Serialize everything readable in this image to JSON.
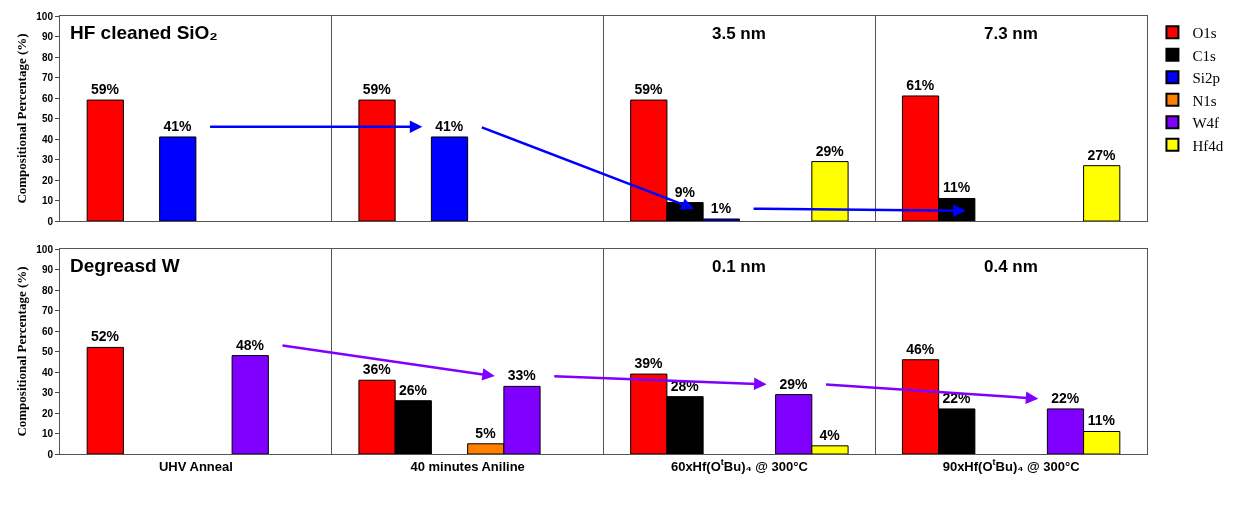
{
  "chart_data": [
    {
      "type": "bar",
      "annotations": [
        "HF cleaned SiO₂",
        "3.5 nm",
        "7.3 nm"
      ],
      "ylabel": "Compositional Percentage (%)",
      "categories": [
        "UHV Anneal",
        "40 minutes Aniline",
        "60xHf(O$^{t}$Bu)₄ @ 300°C",
        "90xHf(O$^{t}$Bu)₄ @ 300°C"
      ],
      "series": [
        {
          "name": "O1s",
          "color": "#ff0000",
          "values": [
            59,
            59,
            59,
            61
          ],
          "value_labels": [
            "59%",
            "59%",
            "59%",
            "61%"
          ]
        },
        {
          "name": "C1s",
          "color": "#000000",
          "values": [
            null,
            null,
            9,
            11
          ],
          "value_labels": [
            null,
            null,
            "9%",
            "11%"
          ]
        },
        {
          "name": "Si2p",
          "color": "#0000ff",
          "values": [
            41,
            41,
            1,
            null
          ],
          "value_labels": [
            "41%",
            "41%",
            "1%",
            null
          ]
        },
        {
          "color": "#ff8000",
          "values": [
            null,
            null,
            null,
            null
          ],
          "value_labels": [
            null,
            null,
            null,
            null
          ]
        },
        {
          "color": "#8000ff",
          "values": [
            null,
            null,
            null,
            null
          ],
          "value_labels": [
            null,
            null,
            null,
            null
          ]
        },
        {
          "name": "Hf4d",
          "color": "#ffff00",
          "values": [
            null,
            null,
            29,
            27
          ],
          "value_labels": [
            null,
            null,
            "29%",
            "27%"
          ]
        }
      ],
      "ylim": [
        0,
        100
      ],
      "yticks": [
        0,
        10,
        20,
        30,
        40,
        50,
        60,
        70,
        80,
        90,
        100
      ],
      "grid": false,
      "legend": "right",
      "tick_labels": "y"
    },
    {
      "type": "bar",
      "annotations": [
        "Degreasd W",
        "0.1 nm",
        "0.4 nm"
      ],
      "ylabel": "Compositional Percentage (%)",
      "categories": [
        "UHV Anneal",
        "40 minutes Aniline",
        "60xHf(O$^{t}$Bu)₄ @ 300°C",
        "90xHf(O$^{t}$Bu)₄ @ 300°C"
      ],
      "series": [
        {
          "name": "O1s",
          "color": "#ff0000",
          "values": [
            52,
            36,
            39,
            46
          ],
          "value_labels": [
            "52%",
            "36%",
            "39%",
            "46%"
          ]
        },
        {
          "name": "C1s",
          "color": "#000000",
          "values": [
            null,
            26,
            28,
            22
          ],
          "value_labels": [
            null,
            "26%",
            "28%",
            "22%"
          ]
        },
        {
          "color": "#0000ff",
          "values": [
            null,
            null,
            null,
            null
          ],
          "value_labels": [
            null,
            null,
            null,
            null
          ]
        },
        {
          "name": "N1s",
          "color": "#ff8000",
          "values": [
            null,
            5,
            null,
            null
          ],
          "value_labels": [
            null,
            "5%",
            null,
            null
          ]
        },
        {
          "name": "W4f",
          "color": "#8000ff",
          "values": [
            48,
            33,
            29,
            22
          ],
          "value_labels": [
            "48%",
            "33%",
            "29%",
            "22%"
          ]
        },
        {
          "name": "Hf4d",
          "color": "#ffff00",
          "values": [
            null,
            null,
            4,
            11
          ],
          "value_labels": [
            null,
            null,
            "4%",
            "11%"
          ]
        }
      ],
      "ylim": [
        0,
        100
      ],
      "yticks": [
        0,
        10,
        20,
        30,
        40,
        50,
        60,
        70,
        80,
        90,
        100
      ],
      "grid": false,
      "legend": "right"
    }
  ]
}
